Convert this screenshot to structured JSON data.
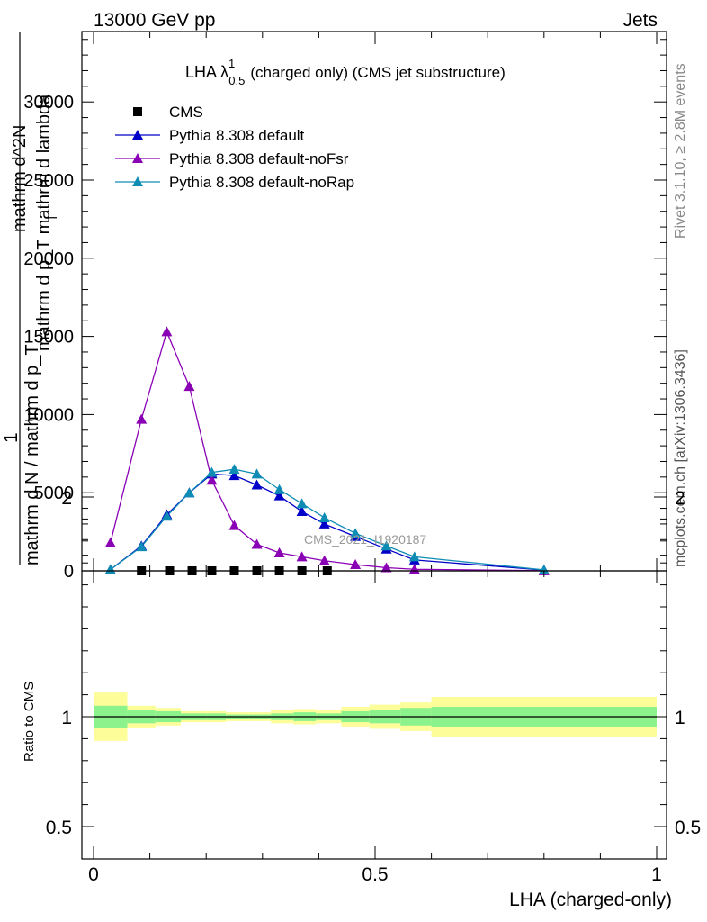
{
  "header": {
    "left": "13000 GeV pp",
    "right": "Jets"
  },
  "side_labels": {
    "rivet": "Rivet 3.1.10, ≥ 2.8M events",
    "mcplots": "mcplots.cern.ch [arXiv:1306.3436]"
  },
  "chart_data": [
    {
      "type": "line",
      "title": "LHA λ^1_0.5 (charged only) (CMS jet substructure)",
      "title_main": "LHA λ",
      "title_sup": "1",
      "title_sub": "0.5",
      "title_rest": "(charged only) (CMS jet substructure)",
      "watermark": "CMS_2021_I1920187",
      "ylabel_numerator": "1",
      "ylabel_denominator": "mathrm d N / mathrm d p_T",
      "ylabel_denominator_sub": "T",
      "ylabel_numerator2": "mathrm d^2 N",
      "ylabel_denominator2": "mathrm d p_T mathrm d lambda",
      "ylabel_line1": "mathrm d^2N",
      "ylabel_line2": "mathrm d p_T mathrm d lambda",
      "ylabel_line3": "mathrm d N / mathrm d p_T",
      "ylim": [
        0,
        35000
      ],
      "y_ticks": [
        0,
        5000,
        10000,
        15000,
        20000,
        25000,
        30000
      ],
      "y_tick_labels": [
        "0",
        "5000",
        "10000",
        "15000",
        "20000",
        "25000",
        "30000"
      ],
      "legend_position": "top-left",
      "series": [
        {
          "name": "CMS",
          "marker": "square",
          "color": "#000000",
          "x": [
            0.085,
            0.135,
            0.175,
            0.21,
            0.25,
            0.29,
            0.33,
            0.37,
            0.415
          ],
          "y": [
            0,
            0,
            0,
            0,
            0,
            0,
            0,
            0,
            0
          ]
        },
        {
          "name": "Pythia 8.308 default",
          "marker": "triangle",
          "color": "#0000c8",
          "x": [
            0.03,
            0.085,
            0.13,
            0.17,
            0.21,
            0.25,
            0.29,
            0.33,
            0.37,
            0.41,
            0.465,
            0.52,
            0.57,
            0.8
          ],
          "y": [
            80,
            1600,
            3600,
            5000,
            6200,
            6100,
            5500,
            4800,
            3800,
            3000,
            2200,
            1400,
            700,
            50
          ]
        },
        {
          "name": "Pythia 8.308 default-noFsr",
          "marker": "triangle",
          "color": "#8a00b4",
          "x": [
            0.03,
            0.085,
            0.13,
            0.17,
            0.21,
            0.25,
            0.29,
            0.33,
            0.37,
            0.41,
            0.465,
            0.52,
            0.57,
            0.8
          ],
          "y": [
            1800,
            9700,
            15300,
            11800,
            5800,
            2900,
            1700,
            1150,
            900,
            650,
            400,
            200,
            100,
            10
          ]
        },
        {
          "name": "Pythia 8.308 default-noRap",
          "marker": "triangle",
          "color": "#0e8cb4",
          "x": [
            0.03,
            0.085,
            0.13,
            0.17,
            0.21,
            0.25,
            0.29,
            0.33,
            0.37,
            0.41,
            0.465,
            0.52,
            0.57,
            0.8
          ],
          "y": [
            80,
            1550,
            3500,
            5000,
            6300,
            6500,
            6200,
            5200,
            4300,
            3400,
            2400,
            1600,
            900,
            60
          ]
        }
      ]
    },
    {
      "type": "area",
      "ylabel": "Ratio to CMS",
      "xlabel": "LHA (charged-only)",
      "xlim": [
        -0.02,
        1.02
      ],
      "ylim": [
        0.35,
        2.35
      ],
      "x_ticks": [
        0,
        0.5,
        1
      ],
      "x_tick_labels": [
        "0",
        "0.5",
        "1"
      ],
      "y_ticks": [
        0.5,
        1,
        2
      ],
      "y_tick_labels": [
        "0.5",
        "1",
        "2"
      ],
      "reference_line": 1,
      "bands": {
        "edges": [
          0,
          0.06,
          0.11,
          0.155,
          0.2,
          0.235,
          0.275,
          0.315,
          0.355,
          0.395,
          0.44,
          0.49,
          0.545,
          0.6,
          1.0
        ],
        "inner_low": [
          0.95,
          0.97,
          0.975,
          0.985,
          0.985,
          0.99,
          0.99,
          0.985,
          0.98,
          0.985,
          0.975,
          0.97,
          0.96,
          0.955
        ],
        "inner_high": [
          1.05,
          1.03,
          1.025,
          1.015,
          1.015,
          1.01,
          1.01,
          1.015,
          1.02,
          1.015,
          1.025,
          1.03,
          1.04,
          1.045
        ],
        "outer_low": [
          0.89,
          0.95,
          0.96,
          0.975,
          0.975,
          0.98,
          0.98,
          0.97,
          0.965,
          0.97,
          0.955,
          0.945,
          0.935,
          0.91
        ],
        "outer_high": [
          1.11,
          1.05,
          1.04,
          1.025,
          1.025,
          1.02,
          1.02,
          1.03,
          1.035,
          1.03,
          1.045,
          1.055,
          1.065,
          1.09
        ],
        "inner_color": "#8cf28c",
        "outer_color": "#fdfd9a"
      }
    }
  ]
}
